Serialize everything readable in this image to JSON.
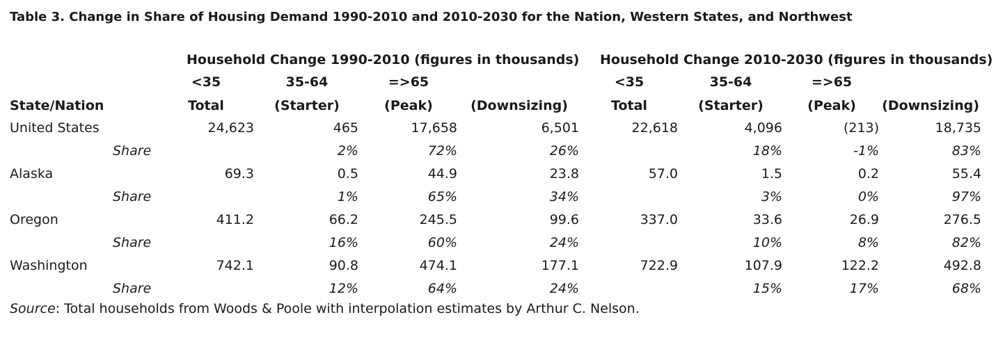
{
  "title": "Table 3. Change in Share of Housing Demand 1990-2010 and 2010-2030 for the Nation, Western States, and Northwest",
  "group_headers": [
    "Household Change 1990-2010 (figures in thousands)",
    "Household Change 2010-2030 (figures in thousands)"
  ],
  "age_headers": [
    "<35",
    "35-64",
    "=>65",
    "<35",
    "35-64",
    "=>65"
  ],
  "column_headers": [
    "State/Nation",
    "Total",
    "(Starter)",
    "(Peak)",
    "(Downsizing)",
    "Total",
    "(Starter)",
    "(Peak)",
    "(Downsizing)"
  ],
  "rows": [
    {
      "name": "United States",
      "values": [
        "24,623",
        "465",
        "17,658",
        "6,501",
        "22,618",
        "4,096",
        "(213)",
        "18,735"
      ]
    },
    {
      "name": "Share",
      "values": [
        "",
        "2%",
        "72%",
        "26%",
        "",
        "18%",
        "-1%",
        "83%"
      ]
    },
    {
      "name": "Alaska",
      "values": [
        "69.3",
        "0.5",
        "44.9",
        "23.8",
        "57.0",
        "1.5",
        "0.2",
        "55.4"
      ]
    },
    {
      "name": "Share",
      "values": [
        "",
        "1%",
        "65%",
        "34%",
        "",
        "3%",
        "0%",
        "97%"
      ]
    },
    {
      "name": "Oregon",
      "values": [
        "411.2",
        "66.2",
        "245.5",
        "99.6",
        "337.0",
        "33.6",
        "26.9",
        "276.5"
      ]
    },
    {
      "name": "Share",
      "values": [
        "",
        "16%",
        "60%",
        "24%",
        "",
        "10%",
        "8%",
        "82%"
      ]
    },
    {
      "name": "Washington",
      "values": [
        "742.1",
        "90.8",
        "474.1",
        "177.1",
        "722.9",
        "107.9",
        "122.2",
        "492.8"
      ]
    },
    {
      "name": "Share",
      "values": [
        "",
        "12%",
        "64%",
        "24%",
        "",
        "15%",
        "17%",
        "68%"
      ]
    }
  ],
  "source": {
    "label": "Source",
    "text": ": Total households from Woods & Poole with interpolation estimates by Arthur C. Nelson."
  }
}
